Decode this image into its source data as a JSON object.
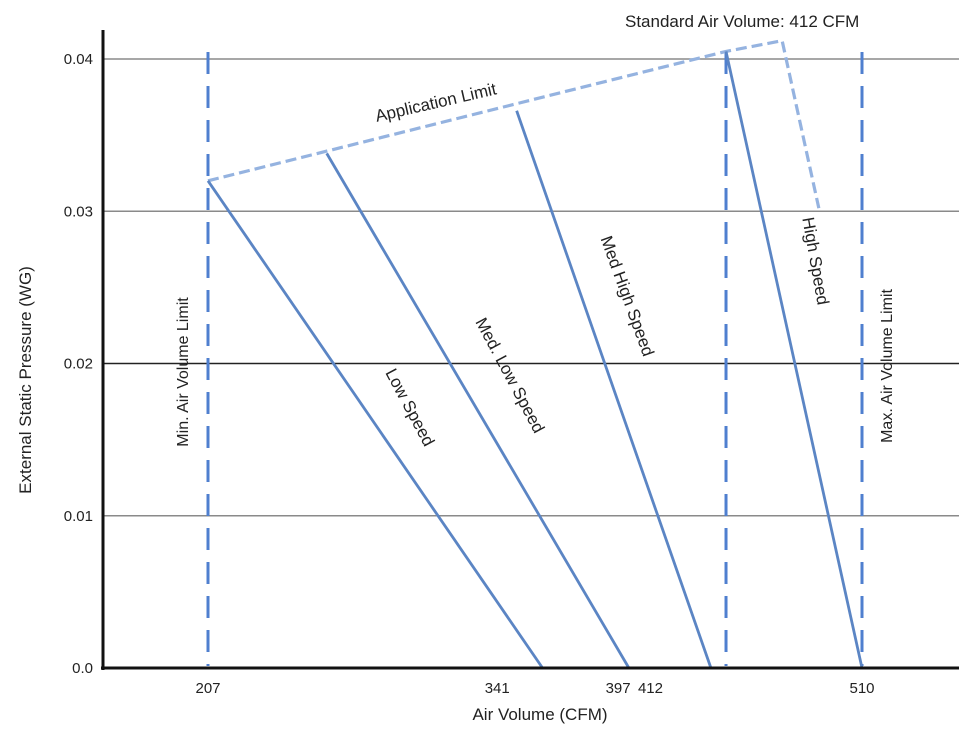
{
  "chart_data": {
    "type": "line",
    "title": "",
    "xlabel": "Air Volume  (CFM)",
    "ylabel": "External Static Pressure (WG)",
    "xlim": [
      155,
      570
    ],
    "ylim": [
      0,
      0.042
    ],
    "x_ticks": [
      {
        "value": 207,
        "label": "207"
      },
      {
        "value": 341,
        "label": "341"
      },
      {
        "value": 397,
        "label": "397"
      },
      {
        "value": 412,
        "label": "412"
      },
      {
        "value": 510,
        "label": "510"
      }
    ],
    "y_ticks": [
      {
        "value": 0,
        "label": "0.0"
      },
      {
        "value": 0.01,
        "label": "0.01"
      },
      {
        "value": 0.02,
        "label": "0.02"
      },
      {
        "value": 0.03,
        "label": "0.03"
      },
      {
        "value": 0.04,
        "label": "0.04"
      }
    ],
    "grid": {
      "horizontal": true,
      "vertical": false
    },
    "series": [
      {
        "name": "Low Speed",
        "color": "#5b85c4",
        "style": "solid",
        "x": [
          207,
          362
        ],
        "y": [
          0.032,
          0
        ]
      },
      {
        "name": "Med. Low Speed",
        "color": "#5b85c4",
        "style": "solid",
        "x": [
          262,
          402
        ],
        "y": [
          0.0338,
          0
        ]
      },
      {
        "name": "Med High Speed",
        "color": "#5b85c4",
        "style": "solid",
        "x": [
          350,
          440
        ],
        "y": [
          0.0366,
          0
        ]
      },
      {
        "name": "High Speed",
        "color": "#5b85c4",
        "style": "solid",
        "x": [
          447,
          510
        ],
        "y": [
          0.0405,
          0
        ]
      }
    ],
    "application_limit": {
      "label": "Application Limit",
      "color": "#95b3e0",
      "x": [
        207,
        447,
        473,
        490
      ],
      "y": [
        0.032,
        0.0405,
        0.0412,
        0.0302
      ]
    },
    "vertical_limits": [
      {
        "x": 207,
        "label": "Min. Air Volume Limit",
        "color": "#4f7fcf"
      },
      {
        "x": 447,
        "label": "",
        "color": "#4f7fcf"
      },
      {
        "x": 510,
        "label": "Max. Air Volume Limit",
        "color": "#4f7fcf"
      }
    ],
    "standard_air_volume_label": "Standard Air Volume:  412 CFM"
  }
}
